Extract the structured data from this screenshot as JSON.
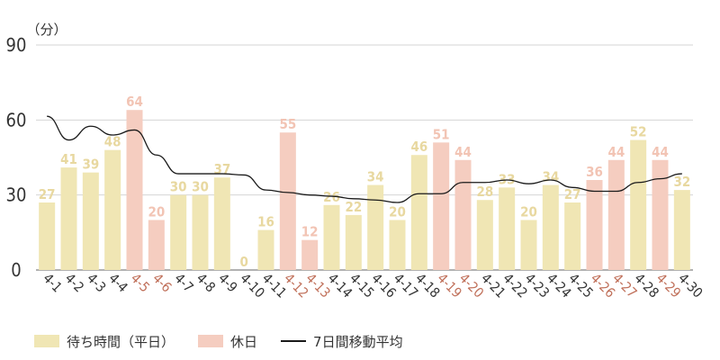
{
  "chart_data": {
    "type": "bar",
    "unit_label": "（分）",
    "y_ticks": [
      "0",
      "30",
      "60",
      "90"
    ],
    "ylim": [
      0,
      90
    ],
    "grid": true,
    "categories": [
      "4-1",
      "4-2",
      "4-3",
      "4-4",
      "4-5",
      "4-6",
      "4-7",
      "4-8",
      "4-9",
      "4-10",
      "4-11",
      "4-12",
      "4-13",
      "4-14",
      "4-15",
      "4-16",
      "4-17",
      "4-18",
      "4-19",
      "4-20",
      "4-21",
      "4-22",
      "4-23",
      "4-24",
      "4-25",
      "4-26",
      "4-27",
      "4-28",
      "4-29",
      "4-30"
    ],
    "values": [
      27,
      41,
      39,
      48,
      64,
      20,
      30,
      30,
      37,
      0,
      16,
      55,
      12,
      26,
      22,
      34,
      20,
      46,
      51,
      44,
      28,
      33,
      20,
      34,
      27,
      36,
      44,
      52,
      44,
      32
    ],
    "holiday": [
      false,
      false,
      false,
      false,
      true,
      true,
      false,
      false,
      false,
      false,
      false,
      true,
      true,
      false,
      false,
      false,
      false,
      false,
      true,
      true,
      false,
      false,
      false,
      false,
      false,
      true,
      true,
      false,
      true,
      false
    ],
    "moving_average": [
      61.5,
      52,
      57.5,
      54,
      56,
      46,
      38.5,
      38.5,
      38.5,
      38,
      32,
      31,
      30,
      29.5,
      28.5,
      28,
      27,
      30.5,
      30.5,
      35,
      35,
      36,
      34.5,
      36,
      33,
      31.5,
      31.5,
      35,
      36.5,
      38.5
    ],
    "series": [
      {
        "name": "待ち時間（平日）",
        "color": "#f0e6b4",
        "label_color": "#e8d8a0"
      },
      {
        "name": "休日",
        "color": "#f5cdc0",
        "label_color": "#f2c4b4",
        "tick_color": "#c0705a"
      },
      {
        "name": "7日間移動平均",
        "color": "#1a1a1a"
      }
    ],
    "legend_position": "bottom-left"
  }
}
